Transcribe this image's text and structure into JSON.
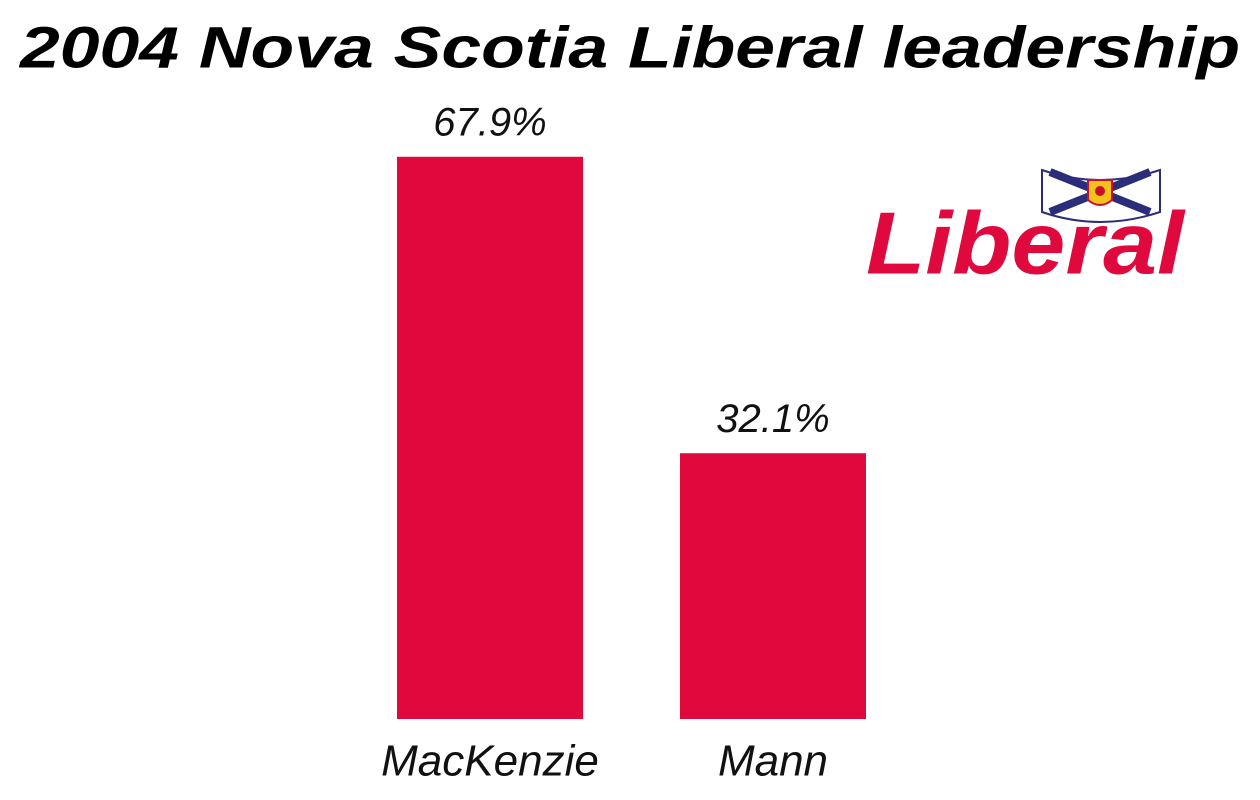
{
  "chart_data": {
    "type": "bar",
    "title": "2004 Nova Scotia Liberal leadership",
    "categories": [
      "MacKenzie",
      "Mann"
    ],
    "values": [
      67.9,
      32.1
    ],
    "value_labels": [
      "67.9%",
      "32.1%"
    ],
    "color": "#e0093e",
    "logo_text": "Liberal"
  }
}
